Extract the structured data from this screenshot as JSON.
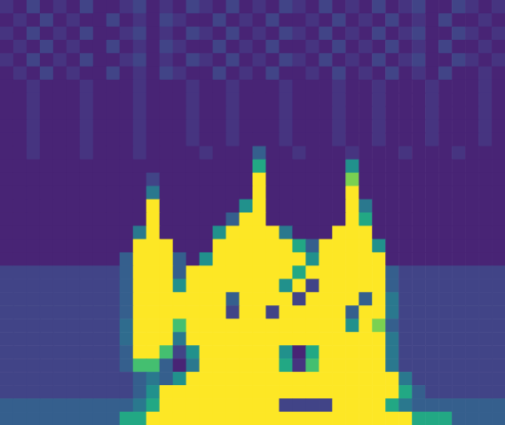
{
  "chart_data": {
    "type": "heatmap",
    "tick_labels": false,
    "zlim": [
      0,
      1
    ],
    "z": [
      [
        0.15,
        0.1,
        0.2,
        0.1,
        0.15,
        0.1,
        0.2,
        0.1,
        0.1,
        0.15,
        0.2,
        0.1,
        0.15,
        0.1,
        0.2,
        0.15,
        0.1,
        0.2,
        0.1,
        0.15,
        0.1,
        0.2,
        0.15,
        0.1,
        0.2,
        0.1,
        0.15,
        0.1,
        0.2,
        0.1,
        0.15,
        0.2,
        0.1,
        0.1,
        0.2,
        0.15,
        0.1,
        0.15
      ],
      [
        0.1,
        0.15,
        0.1,
        0.2,
        0.1,
        0.15,
        0.1,
        0.1,
        0.2,
        0.1,
        0.15,
        0.1,
        0.2,
        0.15,
        0.1,
        0.1,
        0.2,
        0.1,
        0.15,
        0.1,
        0.2,
        0.1,
        0.1,
        0.15,
        0.1,
        0.2,
        0.1,
        0.15,
        0.1,
        0.2,
        0.1,
        0.15,
        0.1,
        0.2,
        0.1,
        0.1,
        0.15,
        0.1
      ],
      [
        0.15,
        0.1,
        0.2,
        0.1,
        0.15,
        0.1,
        0.2,
        0.1,
        0.1,
        0.15,
        0.2,
        0.1,
        0.15,
        0.1,
        0.2,
        0.15,
        0.1,
        0.2,
        0.1,
        0.15,
        0.1,
        0.2,
        0.15,
        0.1,
        0.2,
        0.1,
        0.15,
        0.1,
        0.2,
        0.1,
        0.15,
        0.2,
        0.1,
        0.1,
        0.2,
        0.15,
        0.1,
        0.15
      ],
      [
        0.1,
        0.15,
        0.1,
        0.2,
        0.1,
        0.15,
        0.1,
        0.1,
        0.2,
        0.1,
        0.15,
        0.1,
        0.2,
        0.15,
        0.1,
        0.1,
        0.2,
        0.1,
        0.15,
        0.1,
        0.2,
        0.1,
        0.1,
        0.15,
        0.1,
        0.2,
        0.1,
        0.15,
        0.1,
        0.2,
        0.1,
        0.15,
        0.1,
        0.2,
        0.1,
        0.1,
        0.15,
        0.1
      ],
      [
        0.15,
        0.1,
        0.2,
        0.1,
        0.15,
        0.1,
        0.2,
        0.1,
        0.1,
        0.15,
        0.2,
        0.1,
        0.15,
        0.1,
        0.2,
        0.15,
        0.1,
        0.2,
        0.1,
        0.15,
        0.1,
        0.2,
        0.15,
        0.1,
        0.2,
        0.1,
        0.15,
        0.1,
        0.2,
        0.1,
        0.15,
        0.2,
        0.1,
        0.1,
        0.2,
        0.15,
        0.1,
        0.15
      ],
      [
        0.1,
        0.15,
        0.1,
        0.2,
        0.1,
        0.15,
        0.1,
        0.1,
        0.2,
        0.1,
        0.15,
        0.1,
        0.2,
        0.15,
        0.1,
        0.1,
        0.2,
        0.1,
        0.15,
        0.1,
        0.2,
        0.1,
        0.1,
        0.15,
        0.1,
        0.2,
        0.1,
        0.15,
        0.1,
        0.2,
        0.1,
        0.15,
        0.1,
        0.2,
        0.1,
        0.1,
        0.15,
        0.1
      ],
      [
        0.1,
        0.1,
        0.15,
        0.1,
        0.1,
        0.1,
        0.15,
        0.1,
        0.1,
        0.1,
        0.15,
        0.1,
        0.1,
        0.1,
        0.15,
        0.1,
        0.1,
        0.15,
        0.1,
        0.1,
        0.1,
        0.15,
        0.1,
        0.1,
        0.1,
        0.15,
        0.1,
        0.1,
        0.15,
        0.1,
        0.1,
        0.1,
        0.15,
        0.1,
        0.1,
        0.1,
        0.15,
        0.1
      ],
      [
        0.1,
        0.1,
        0.15,
        0.1,
        0.1,
        0.1,
        0.15,
        0.1,
        0.1,
        0.1,
        0.15,
        0.1,
        0.1,
        0.1,
        0.15,
        0.1,
        0.1,
        0.15,
        0.1,
        0.1,
        0.1,
        0.15,
        0.1,
        0.1,
        0.1,
        0.15,
        0.1,
        0.1,
        0.15,
        0.1,
        0.1,
        0.1,
        0.15,
        0.1,
        0.1,
        0.1,
        0.15,
        0.1
      ],
      [
        0.1,
        0.1,
        0.15,
        0.1,
        0.1,
        0.1,
        0.15,
        0.1,
        0.1,
        0.1,
        0.15,
        0.1,
        0.1,
        0.1,
        0.15,
        0.1,
        0.1,
        0.15,
        0.1,
        0.1,
        0.1,
        0.15,
        0.1,
        0.1,
        0.1,
        0.15,
        0.1,
        0.1,
        0.15,
        0.1,
        0.1,
        0.1,
        0.15,
        0.1,
        0.1,
        0.1,
        0.15,
        0.1
      ],
      [
        0.1,
        0.1,
        0.15,
        0.1,
        0.1,
        0.1,
        0.15,
        0.1,
        0.1,
        0.1,
        0.15,
        0.1,
        0.1,
        0.1,
        0.15,
        0.1,
        0.1,
        0.15,
        0.1,
        0.1,
        0.1,
        0.15,
        0.1,
        0.1,
        0.1,
        0.15,
        0.1,
        0.1,
        0.15,
        0.1,
        0.1,
        0.1,
        0.15,
        0.1,
        0.1,
        0.1,
        0.15,
        0.1
      ],
      [
        0.1,
        0.1,
        0.15,
        0.1,
        0.1,
        0.1,
        0.15,
        0.1,
        0.1,
        0.1,
        0.15,
        0.1,
        0.1,
        0.1,
        0.15,
        0.1,
        0.1,
        0.15,
        0.1,
        0.1,
        0.1,
        0.15,
        0.1,
        0.1,
        0.1,
        0.15,
        0.1,
        0.1,
        0.15,
        0.1,
        0.1,
        0.1,
        0.15,
        0.1,
        0.1,
        0.1,
        0.15,
        0.1
      ],
      [
        0.1,
        0.1,
        0.15,
        0.1,
        0.1,
        0.1,
        0.15,
        0.1,
        0.1,
        0.1,
        0.15,
        0.1,
        0.1,
        0.1,
        0.1,
        0.15,
        0.1,
        0.1,
        0.1,
        0.3,
        0.1,
        0.1,
        0.15,
        0.1,
        0.1,
        0.1,
        0.15,
        0.1,
        0.1,
        0.1,
        0.15,
        0.1,
        0.1,
        0.1,
        0.15,
        0.1,
        0.1,
        0.1
      ],
      [
        0.1,
        0.1,
        0.1,
        0.1,
        0.1,
        0.1,
        0.1,
        0.1,
        0.1,
        0.1,
        0.1,
        0.1,
        0.1,
        0.1,
        0.1,
        0.1,
        0.1,
        0.1,
        0.1,
        0.6,
        0.1,
        0.1,
        0.1,
        0.1,
        0.1,
        0.1,
        0.5,
        0.1,
        0.1,
        0.1,
        0.1,
        0.1,
        0.1,
        0.1,
        0.1,
        0.1,
        0.1,
        0.1
      ],
      [
        0.1,
        0.1,
        0.1,
        0.1,
        0.1,
        0.1,
        0.1,
        0.1,
        0.1,
        0.1,
        0.1,
        0.2,
        0.1,
        0.1,
        0.1,
        0.1,
        0.1,
        0.1,
        0.1,
        1,
        0.1,
        0.1,
        0.1,
        0.1,
        0.1,
        0.1,
        0.8,
        0.1,
        0.1,
        0.1,
        0.1,
        0.1,
        0.1,
        0.1,
        0.1,
        0.1,
        0.1,
        0.1
      ],
      [
        0.1,
        0.1,
        0.1,
        0.1,
        0.1,
        0.1,
        0.1,
        0.1,
        0.1,
        0.1,
        0.1,
        0.4,
        0.1,
        0.1,
        0.1,
        0.1,
        0.1,
        0.1,
        0.1,
        1,
        0.1,
        0.1,
        0.1,
        0.1,
        0.1,
        0.1,
        1,
        0.1,
        0.1,
        0.1,
        0.1,
        0.1,
        0.1,
        0.1,
        0.1,
        0.1,
        0.1,
        0.1
      ],
      [
        0.1,
        0.1,
        0.1,
        0.1,
        0.1,
        0.1,
        0.1,
        0.1,
        0.1,
        0.1,
        0.1,
        1,
        0.1,
        0.1,
        0.1,
        0.1,
        0.1,
        0.1,
        0.5,
        1,
        0.1,
        0.1,
        0.1,
        0.1,
        0.1,
        0.1,
        1,
        0.4,
        0.1,
        0.1,
        0.1,
        0.1,
        0.1,
        0.1,
        0.1,
        0.1,
        0.1,
        0.1
      ],
      [
        0.1,
        0.1,
        0.1,
        0.1,
        0.1,
        0.1,
        0.1,
        0.1,
        0.1,
        0.1,
        0.1,
        1,
        0.1,
        0.1,
        0.1,
        0.1,
        0.1,
        0.3,
        1,
        1,
        0.1,
        0.1,
        0.1,
        0.1,
        0.1,
        0.1,
        1,
        0.6,
        0.1,
        0.1,
        0.1,
        0.1,
        0.1,
        0.1,
        0.1,
        0.1,
        0.1,
        0.1
      ],
      [
        0.1,
        0.1,
        0.1,
        0.1,
        0.1,
        0.1,
        0.1,
        0.1,
        0.1,
        0.1,
        0.4,
        1,
        0.1,
        0.1,
        0.1,
        0.1,
        0.5,
        1,
        1,
        1,
        1,
        0.4,
        0.1,
        0.1,
        0.1,
        1,
        1,
        1,
        0.1,
        0.1,
        0.1,
        0.1,
        0.1,
        0.1,
        0.1,
        0.1,
        0.1,
        0.1
      ],
      [
        0.1,
        0.1,
        0.1,
        0.1,
        0.1,
        0.1,
        0.1,
        0.1,
        0.1,
        0.1,
        1,
        1,
        1,
        0.1,
        0.1,
        0.1,
        1,
        1,
        1,
        1,
        1,
        1,
        0.6,
        0.3,
        1,
        1,
        1,
        1,
        0.5,
        0.1,
        0.1,
        0.1,
        0.1,
        0.1,
        0.1,
        0.1,
        0.1,
        0.1
      ],
      [
        0.1,
        0.1,
        0.1,
        0.1,
        0.1,
        0.1,
        0.1,
        0.1,
        0.1,
        0.3,
        1,
        1,
        1,
        0.3,
        0.1,
        0.5,
        1,
        1,
        1,
        1,
        1,
        1,
        1,
        0.5,
        1,
        1,
        1,
        1,
        1,
        0.1,
        0.1,
        0.1,
        0.1,
        0.1,
        0.1,
        0.1,
        0.1,
        0.1
      ],
      [
        0.2,
        0.2,
        0.2,
        0.2,
        0.2,
        0.2,
        0.2,
        0.2,
        0.2,
        0.3,
        1,
        1,
        1,
        0.3,
        1,
        1,
        1,
        1,
        1,
        1,
        1,
        1,
        0.6,
        1,
        1,
        1,
        1,
        1,
        1,
        0.3,
        0.2,
        0.2,
        0.2,
        0.2,
        0.2,
        0.2,
        0.2,
        0.2
      ],
      [
        0.2,
        0.2,
        0.2,
        0.2,
        0.2,
        0.2,
        0.2,
        0.2,
        0.2,
        0.3,
        1,
        1,
        1,
        0.5,
        1,
        1,
        1,
        1,
        1,
        1,
        1,
        0.5,
        1,
        0.2,
        1,
        1,
        1,
        1,
        1,
        0.3,
        0.2,
        0.2,
        0.2,
        0.2,
        0.2,
        0.2,
        0.2,
        0.2
      ],
      [
        0.2,
        0.2,
        0.2,
        0.2,
        0.2,
        0.2,
        0.2,
        0.2,
        0.2,
        0.3,
        1,
        1,
        1,
        1,
        1,
        1,
        1,
        0.3,
        1,
        1,
        1,
        1,
        0.2,
        1,
        1,
        1,
        1,
        0.3,
        1,
        0.4,
        0.2,
        0.2,
        0.2,
        0.2,
        0.2,
        0.2,
        0.2,
        0.2
      ],
      [
        0.2,
        0.2,
        0.2,
        0.2,
        0.2,
        0.2,
        0.2,
        0.2,
        0.2,
        0.3,
        1,
        1,
        1,
        1,
        1,
        1,
        1,
        0.2,
        1,
        1,
        0.2,
        1,
        1,
        1,
        1,
        1,
        0.3,
        1,
        1,
        0.4,
        0.2,
        0.2,
        0.2,
        0.2,
        0.2,
        0.2,
        0.2,
        0.2
      ],
      [
        0.2,
        0.2,
        0.2,
        0.2,
        0.2,
        0.2,
        0.2,
        0.2,
        0.2,
        0.35,
        1,
        1,
        1,
        0.7,
        1,
        1,
        1,
        1,
        1,
        1,
        1,
        1,
        1,
        1,
        1,
        1,
        0.5,
        1,
        0.8,
        0.3,
        0.2,
        0.2,
        0.2,
        0.2,
        0.2,
        0.2,
        0.2,
        0.2
      ],
      [
        0.2,
        0.2,
        0.2,
        0.2,
        0.2,
        0.2,
        0.2,
        0.2,
        0.2,
        0.35,
        1,
        1,
        1,
        0.4,
        1,
        1,
        1,
        1,
        1,
        1,
        1,
        1,
        1,
        1,
        1,
        1,
        1,
        1,
        1,
        0.4,
        0.2,
        0.2,
        0.2,
        0.2,
        0.2,
        0.2,
        0.2,
        0.2
      ],
      [
        0.2,
        0.2,
        0.2,
        0.2,
        0.2,
        0.2,
        0.2,
        0.2,
        0.2,
        0.3,
        1,
        1,
        0.7,
        0.2,
        0.5,
        1,
        1,
        1,
        1,
        1,
        1,
        0.5,
        0.1,
        0.6,
        1,
        1,
        1,
        1,
        1,
        0.4,
        0.2,
        0.2,
        0.2,
        0.2,
        0.2,
        0.2,
        0.2,
        0.2
      ],
      [
        0.2,
        0.2,
        0.2,
        0.2,
        0.2,
        0.2,
        0.2,
        0.2,
        0.2,
        0.3,
        0.7,
        0.7,
        0.3,
        0.1,
        0.4,
        1,
        1,
        1,
        1,
        1,
        1,
        0.6,
        0.15,
        0.7,
        1,
        1,
        1,
        1,
        1,
        0.4,
        0.2,
        0.2,
        0.2,
        0.2,
        0.2,
        0.2,
        0.2,
        0.2
      ],
      [
        0.2,
        0.2,
        0.2,
        0.2,
        0.2,
        0.2,
        0.2,
        0.2,
        0.2,
        0.2,
        0.3,
        0.4,
        0.3,
        0.5,
        1,
        1,
        1,
        1,
        1,
        1,
        1,
        1,
        1,
        1,
        1,
        1,
        1,
        1,
        1,
        1,
        0.4,
        0.2,
        0.2,
        0.2,
        0.2,
        0.2,
        0.2,
        0.2
      ],
      [
        0.2,
        0.2,
        0.2,
        0.2,
        0.2,
        0.2,
        0.2,
        0.2,
        0.2,
        0.2,
        0.3,
        0.5,
        1,
        1,
        1,
        1,
        1,
        1,
        1,
        1,
        1,
        1,
        1,
        1,
        1,
        1,
        1,
        1,
        1,
        1,
        0.6,
        0.3,
        0.2,
        0.2,
        0.2,
        0.2,
        0.2,
        0.2
      ],
      [
        0.3,
        0.3,
        0.3,
        0.3,
        0.3,
        0.3,
        0.3,
        0.3,
        0.3,
        0.3,
        0.4,
        0.6,
        1,
        1,
        1,
        1,
        1,
        1,
        1,
        1,
        1,
        0.2,
        0.2,
        0.2,
        0.2,
        1,
        1,
        1,
        1,
        0.6,
        0.4,
        0.3,
        0.3,
        0.3,
        0.3,
        0.3,
        0.3,
        0.3
      ],
      [
        0.3,
        0.3,
        0.3,
        0.3,
        0.3,
        0.3,
        0.3,
        0.3,
        0.3,
        0.6,
        0.6,
        1,
        1,
        1,
        1,
        1,
        1,
        1,
        1,
        1,
        1,
        1,
        1,
        1,
        1,
        1,
        1,
        1,
        1,
        1,
        1,
        0.6,
        0.6,
        0.6,
        0.3,
        0.3,
        0.3,
        0.3
      ]
    ]
  }
}
